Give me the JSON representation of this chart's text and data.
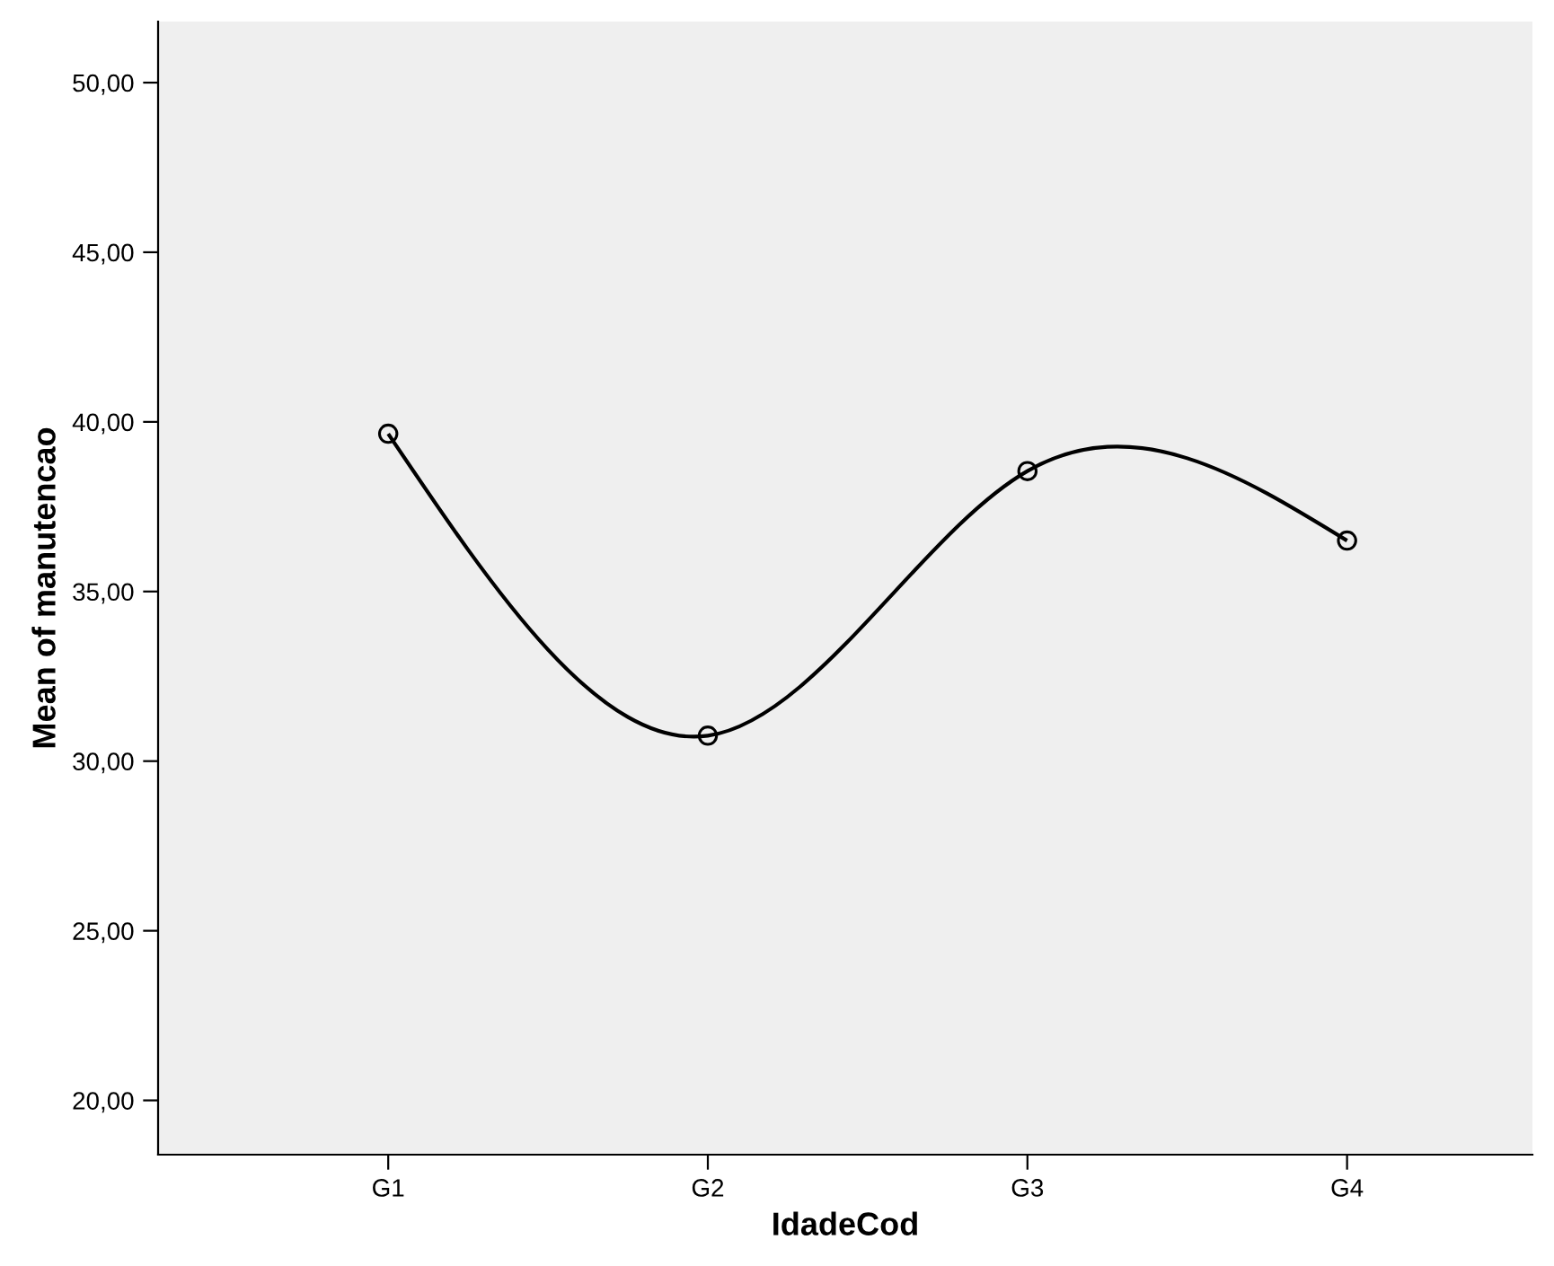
{
  "chart_data": {
    "type": "line",
    "xlabel": "IdadeCod",
    "ylabel": "Mean of manutencao",
    "categories": [
      "G1",
      "G2",
      "G3",
      "G4"
    ],
    "series": [
      {
        "color": "#000000",
        "values": [
          39.65,
          30.75,
          38.55,
          36.5
        ]
      }
    ],
    "marker": "circle",
    "line_style": "solid",
    "grid": false,
    "ylim": [
      18.4,
      51.8
    ],
    "yticks": [
      {
        "value": 20,
        "label": "20,00"
      },
      {
        "value": 25,
        "label": "25,00"
      },
      {
        "value": 30,
        "label": "30,00"
      },
      {
        "value": 35,
        "label": "35,00"
      },
      {
        "value": 40,
        "label": "40,00"
      },
      {
        "value": 45,
        "label": "45,00"
      },
      {
        "value": 50,
        "label": "50,00"
      }
    ]
  }
}
